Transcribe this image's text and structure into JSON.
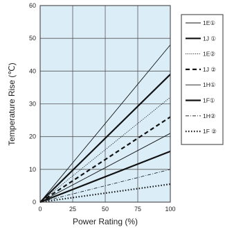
{
  "chart_data": {
    "type": "line",
    "title": "",
    "xlabel": "Power Rating (%)",
    "ylabel": "Temperature Rise (℃)",
    "xlim": [
      0,
      100
    ],
    "ylim": [
      0,
      60
    ],
    "x_ticks": [
      0,
      25,
      50,
      75,
      100
    ],
    "y_ticks": [
      0,
      10,
      20,
      30,
      40,
      50,
      60
    ],
    "grid": true,
    "legend_position": "right",
    "plot_background": "#dbeef8",
    "series": [
      {
        "name": "1E①",
        "x": [
          0,
          100
        ],
        "values": [
          0,
          48
        ],
        "color": "#111111",
        "style": "thin-solid"
      },
      {
        "name": "1J ①",
        "x": [
          0,
          100
        ],
        "values": [
          0,
          39
        ],
        "color": "#111111",
        "style": "thick-solid"
      },
      {
        "name": "1E②",
        "x": [
          0,
          100
        ],
        "values": [
          0,
          32
        ],
        "color": "#111111",
        "style": "thin-dotted"
      },
      {
        "name": "1J ②",
        "x": [
          0,
          100
        ],
        "values": [
          0,
          26
        ],
        "color": "#111111",
        "style": "thick-dashed"
      },
      {
        "name": "1H①",
        "x": [
          0,
          100
        ],
        "values": [
          0,
          21
        ],
        "color": "#111111",
        "style": "thin-solid"
      },
      {
        "name": "1F①",
        "x": [
          0,
          100
        ],
        "values": [
          0,
          15.5
        ],
        "color": "#111111",
        "style": "thick-solid"
      },
      {
        "name": "1H②",
        "x": [
          0,
          100
        ],
        "values": [
          0,
          10
        ],
        "color": "#111111",
        "style": "dash-dot"
      },
      {
        "name": "1F ②",
        "x": [
          0,
          100
        ],
        "values": [
          0,
          5.5
        ],
        "color": "#111111",
        "style": "thick-dotted"
      }
    ]
  }
}
